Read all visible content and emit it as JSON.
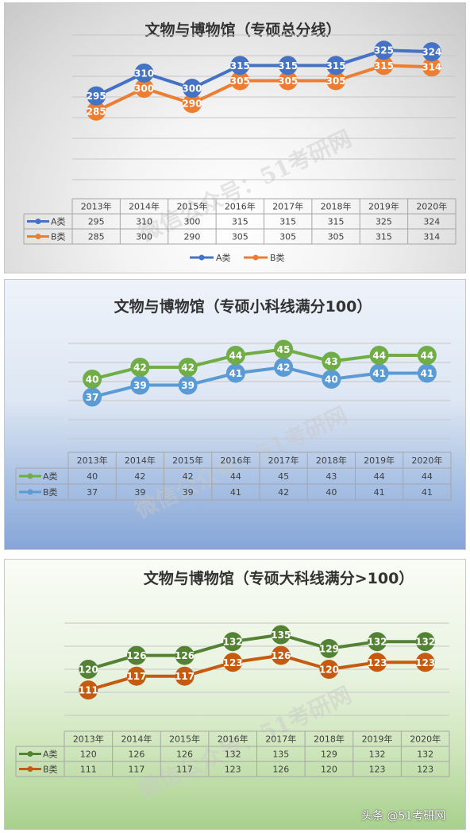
{
  "chart_data": [
    {
      "type": "line",
      "title": "文物与博物馆（专硕总分线）",
      "categories": [
        "2013年",
        "2014年",
        "2015年",
        "2016年",
        "2017年",
        "2018年",
        "2019年",
        "2020年"
      ],
      "series": [
        {
          "name": "A类",
          "values": [
            295,
            310,
            300,
            315,
            315,
            315,
            325,
            324
          ],
          "color": "#4472c4"
        },
        {
          "name": "B类",
          "values": [
            285,
            300,
            290,
            305,
            305,
            305,
            315,
            314
          ],
          "color": "#ed7d31"
        }
      ],
      "ylim": [
        240,
        335
      ],
      "grid": true,
      "legend": "bottom",
      "data_table": true
    },
    {
      "type": "line",
      "title": "文物与博物馆（专硕小科线满分100）",
      "categories": [
        "2013年",
        "2014年",
        "2015年",
        "2016年",
        "2017年",
        "2018年",
        "2019年",
        "2020年"
      ],
      "series": [
        {
          "name": "A类",
          "values": [
            40,
            42,
            42,
            44,
            45,
            43,
            44,
            44
          ],
          "color": "#70ad47"
        },
        {
          "name": "B类",
          "values": [
            37,
            39,
            39,
            41,
            42,
            40,
            41,
            41
          ],
          "color": "#5b9bd5"
        }
      ],
      "ylim": [
        30,
        46
      ],
      "grid": true,
      "data_table": true
    },
    {
      "type": "line",
      "title": "文物与博物馆（专硕大科线满分>100）",
      "categories": [
        "2013年",
        "2014年",
        "2015年",
        "2016年",
        "2017年",
        "2018年",
        "2019年",
        "2020年"
      ],
      "series": [
        {
          "name": "A类",
          "values": [
            120,
            126,
            126,
            132,
            135,
            129,
            132,
            132
          ],
          "color": "#548235"
        },
        {
          "name": "B类",
          "values": [
            111,
            117,
            117,
            123,
            126,
            120,
            123,
            123
          ],
          "color": "#c55a11"
        }
      ],
      "ylim": [
        100,
        140
      ],
      "grid": true,
      "data_table": true
    }
  ],
  "watermark": "微信公众号：51考研网",
  "footer_watermark": "头条 @51考研网"
}
